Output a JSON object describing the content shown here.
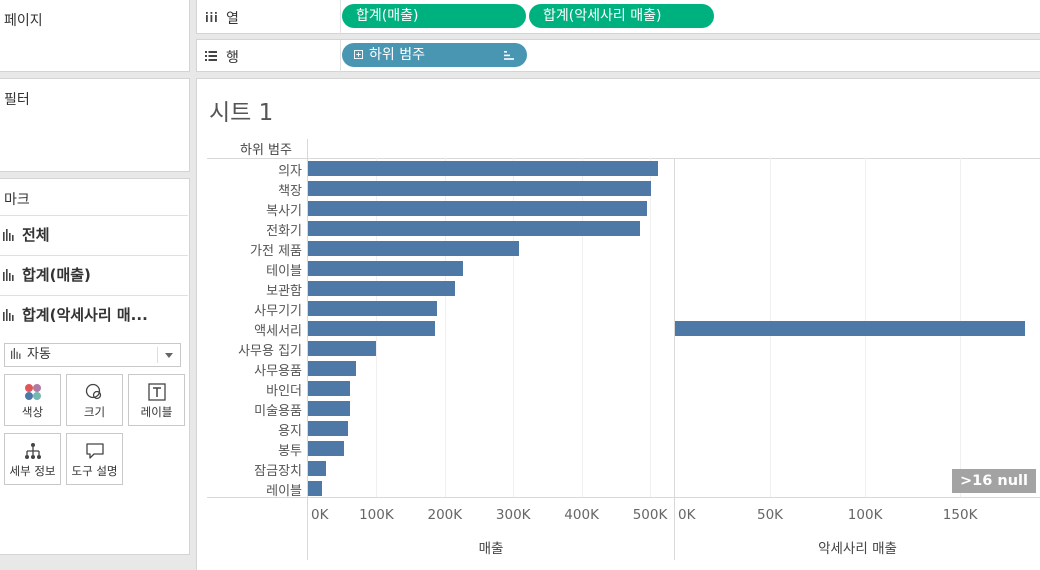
{
  "shelves": {
    "pages_label": "페이지",
    "filters_label": "필터",
    "columns_label": "열",
    "columns_icon": "columns-icon",
    "rows_label": "행",
    "rows_icon": "rows-icon",
    "column_pills": [
      "합계(매출)",
      "합계(악세사리 매출)"
    ],
    "row_pill": "하위 범주",
    "row_pill_icons": [
      "plus-box-icon",
      "sort-descending-icon"
    ]
  },
  "marks": {
    "title": "마크",
    "items": [
      {
        "label": "전체",
        "icon": "bar-chart-icon"
      },
      {
        "label": "합계(매출)",
        "icon": "bar-chart-icon"
      },
      {
        "label": "합계(악세사리 매...",
        "icon": "bar-chart-icon"
      }
    ],
    "mark_type": "자동",
    "cards": [
      {
        "label": "색상",
        "icon": "color-dots-icon"
      },
      {
        "label": "크기",
        "icon": "size-circles-icon"
      },
      {
        "label": "레이블",
        "icon": "text-label-icon"
      },
      {
        "label": "세부 정보",
        "icon": "detail-tree-icon"
      },
      {
        "label": "도구 설명",
        "icon": "tooltip-bubble-icon"
      }
    ]
  },
  "sheet": {
    "title": "시트 1",
    "row_header": "하위 범주",
    "null_badge": ">16 null"
  },
  "colors": {
    "pill_green": "#00b180",
    "pill_blue": "#4996b2",
    "bar": "#4e79a7"
  },
  "chart_data": [
    {
      "type": "bar",
      "orientation": "horizontal",
      "categories": [
        "의자",
        "책장",
        "복사기",
        "전화기",
        "가전 제품",
        "테이블",
        "보관함",
        "사무기기",
        "액세서리",
        "사무용 집기",
        "사무용품",
        "바인더",
        "미술용품",
        "용지",
        "봉투",
        "잠금장치",
        "레이블"
      ],
      "values": [
        511000,
        502000,
        495000,
        485000,
        308000,
        227000,
        215000,
        189000,
        185000,
        100000,
        70000,
        62000,
        62000,
        59000,
        52000,
        26000,
        21000
      ],
      "xlabel": "매출",
      "xlim": [
        0,
        535000
      ],
      "ticks": [
        "0K",
        "100K",
        "200K",
        "300K",
        "400K",
        "500K"
      ],
      "tick_values": [
        0,
        100000,
        200000,
        300000,
        400000,
        500000
      ],
      "grid": true
    },
    {
      "type": "bar",
      "orientation": "horizontal",
      "categories": [
        "액세서리"
      ],
      "values": [
        184000
      ],
      "xlabel": "악세사리 매출",
      "xlim": [
        0,
        192000
      ],
      "ticks": [
        "0K",
        "50K",
        "100K",
        "150K"
      ],
      "tick_values": [
        0,
        50000,
        100000,
        150000
      ],
      "grid": true
    }
  ]
}
